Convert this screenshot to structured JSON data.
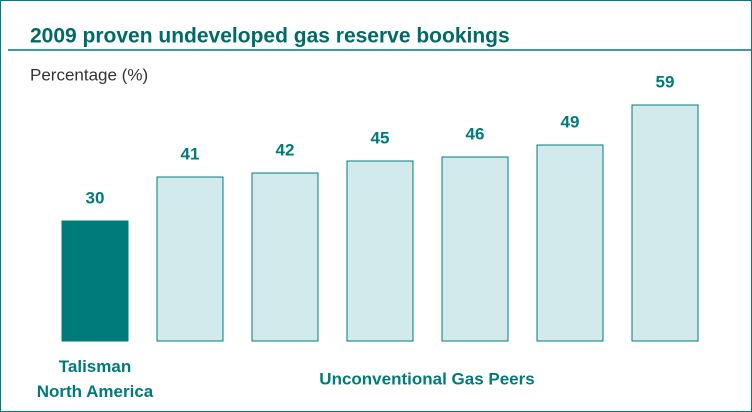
{
  "chart_data": {
    "type": "bar",
    "title": "2009 proven undeveloped gas reserve bookings",
    "y_label": "Percentage (%)",
    "categories": [
      "Talisman\nNorth America",
      null,
      null,
      null,
      null,
      null,
      null
    ],
    "values": [
      30,
      41,
      42,
      45,
      46,
      49,
      59
    ],
    "colors": [
      "#007b7b",
      "#d3eaec",
      "#d3eaec",
      "#d3eaec",
      "#d3eaec",
      "#d3eaec",
      "#d3eaec"
    ],
    "group_label": "Unconventional Gas Peers"
  }
}
